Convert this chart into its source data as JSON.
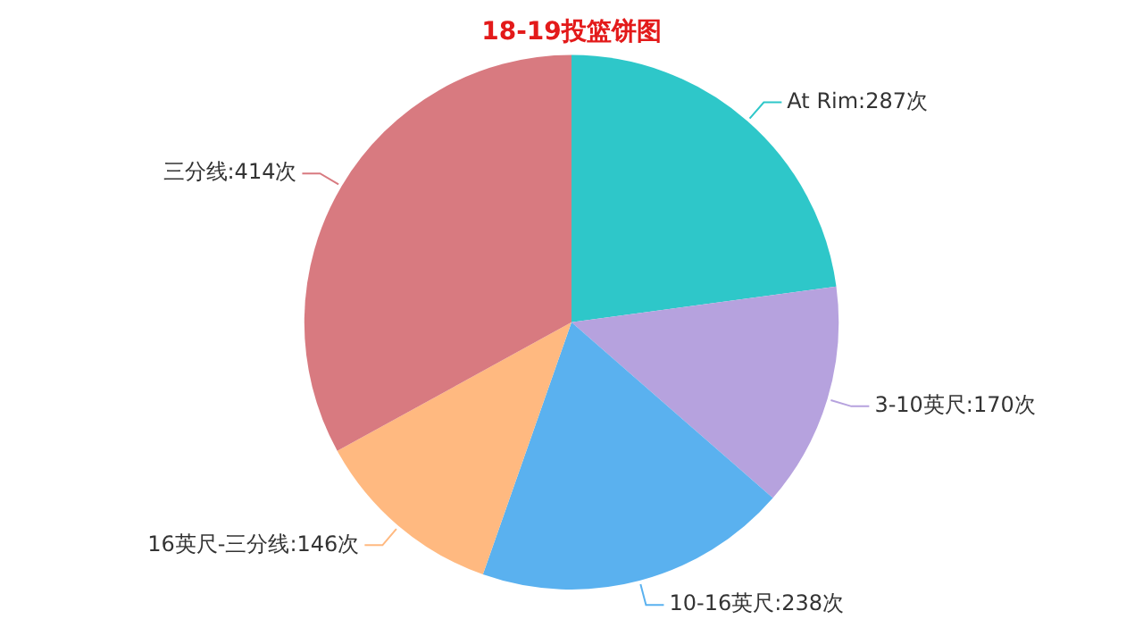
{
  "chart_data": {
    "type": "pie",
    "title": "18-19投篮饼图",
    "categories": [
      "At Rim",
      "3-10英尺",
      "10-16英尺",
      "16英尺-三分线",
      "三分线"
    ],
    "values": [
      287,
      170,
      238,
      146,
      414
    ],
    "value_labels": [
      "287次",
      "170次",
      "238次",
      "146次",
      "414次"
    ],
    "colors": [
      "#2ec7c9",
      "#b6a2de",
      "#5ab1ef",
      "#ffb980",
      "#d87a80"
    ],
    "legend": false
  }
}
